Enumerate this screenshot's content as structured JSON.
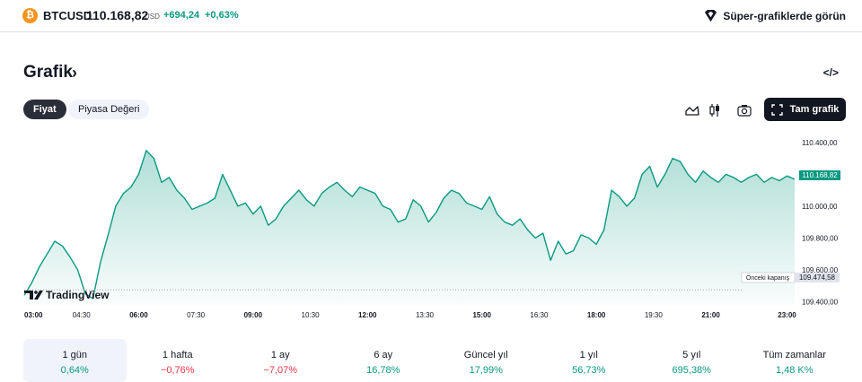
{
  "header": {
    "coin_icon_glyph": "₿",
    "symbol": "BTCUSD",
    "price": "110.168,82",
    "unit": "USD",
    "change": "+694,24",
    "change_pct": "+0,63%",
    "super_charts_label": "Süper-grafiklerde görün"
  },
  "section": {
    "title": "Grafik",
    "chevron": "›",
    "embed_label": "</>"
  },
  "tabs": [
    {
      "label": "Fiyat",
      "active": true
    },
    {
      "label": "Piyasa Değeri",
      "active": false
    }
  ],
  "toolbar": {
    "full_chart_label": "Tam grafik"
  },
  "colors": {
    "up": "#089981",
    "down": "#f23645",
    "dark": "#131722",
    "pill_bg": "#f0f3fa",
    "btc": "#f7931a"
  },
  "chart_data": {
    "type": "area",
    "title": "",
    "xlabel": "",
    "ylabel": "",
    "x_ticks": [
      "03:00",
      "04:30",
      "06:00",
      "07:30",
      "09:00",
      "10:30",
      "12:00",
      "13:30",
      "15:00",
      "16:30",
      "18:00",
      "19:30",
      "21:00",
      "23:00"
    ],
    "x_ticks_bold": [
      "03:00",
      "06:00",
      "09:00",
      "12:00",
      "15:00",
      "18:00",
      "21:00",
      "23:00"
    ],
    "y_ticks": [
      110400,
      110200,
      110000,
      109800,
      109600,
      109400
    ],
    "y_tick_labels": [
      "110.400,00",
      "110.200,00",
      "110.000,00",
      "109.800,00",
      "109.600,00",
      "109.400,00"
    ],
    "ylim": [
      109380,
      110450
    ],
    "grid": false,
    "x_hours": [
      3.0,
      3.2,
      3.4,
      3.6,
      3.8,
      4.0,
      4.2,
      4.4,
      4.6,
      4.8,
      5.0,
      5.2,
      5.4,
      5.6,
      5.8,
      6.0,
      6.2,
      6.4,
      6.6,
      6.8,
      7.0,
      7.2,
      7.4,
      7.6,
      7.8,
      8.0,
      8.2,
      8.4,
      8.6,
      8.8,
      9.0,
      9.2,
      9.4,
      9.6,
      9.8,
      10.0,
      10.2,
      10.4,
      10.6,
      10.8,
      11.0,
      11.2,
      11.4,
      11.6,
      11.8,
      12.0,
      12.2,
      12.4,
      12.6,
      12.8,
      13.0,
      13.2,
      13.4,
      13.6,
      13.8,
      14.0,
      14.2,
      14.4,
      14.6,
      14.8,
      15.0,
      15.2,
      15.4,
      15.6,
      15.8,
      16.0,
      16.2,
      16.4,
      16.6,
      16.8,
      17.0,
      17.2,
      17.4,
      17.6,
      17.8,
      18.0,
      18.2,
      18.4,
      18.6,
      18.8,
      19.0,
      19.2,
      19.4,
      19.6,
      19.8,
      20.0,
      20.2,
      20.4,
      20.6,
      20.8,
      21.0,
      21.2,
      21.4,
      21.6,
      21.8,
      22.0,
      22.2,
      22.4,
      22.6,
      22.8,
      23.0,
      23.2
    ],
    "values": [
      109440,
      109520,
      109620,
      109700,
      109780,
      109750,
      109680,
      109600,
      109450,
      109420,
      109650,
      109820,
      110000,
      110080,
      110120,
      110200,
      110350,
      110300,
      110150,
      110180,
      110100,
      110050,
      109980,
      110000,
      110020,
      110050,
      110200,
      110100,
      110000,
      110020,
      109950,
      110000,
      109880,
      109920,
      110000,
      110050,
      110100,
      110040,
      110000,
      110080,
      110120,
      110150,
      110100,
      110060,
      110120,
      110100,
      110080,
      110000,
      109980,
      109900,
      109920,
      110040,
      110000,
      109900,
      109960,
      110050,
      110100,
      110080,
      110020,
      110000,
      109980,
      110060,
      109950,
      109900,
      109880,
      109920,
      109850,
      109800,
      109830,
      109660,
      109780,
      109700,
      109720,
      109820,
      109800,
      109760,
      109850,
      110100,
      110060,
      110000,
      110050,
      110200,
      110250,
      110120,
      110200,
      110300,
      110280,
      110200,
      110150,
      110220,
      110180,
      110150,
      110200,
      110180,
      110150,
      110180,
      110200,
      110150,
      110180,
      110160,
      110190,
      110168.82
    ],
    "current_price_label": "110.168,82",
    "previous_close": 109474.58,
    "previous_close_label": "109.474,58",
    "previous_close_text": "Önceki kapanış",
    "watermark": "TradingView"
  },
  "periods": [
    {
      "label": "1 gün",
      "value": "0,64%",
      "trend": "pos",
      "active": true
    },
    {
      "label": "1 hafta",
      "value": "−0,76%",
      "trend": "neg",
      "active": false
    },
    {
      "label": "1 ay",
      "value": "−7,07%",
      "trend": "neg",
      "active": false
    },
    {
      "label": "6 ay",
      "value": "16,78%",
      "trend": "pos",
      "active": false
    },
    {
      "label": "Güncel yıl",
      "value": "17,99%",
      "trend": "pos",
      "active": false
    },
    {
      "label": "1 yıl",
      "value": "56,73%",
      "trend": "pos",
      "active": false
    },
    {
      "label": "5 yıl",
      "value": "695,38%",
      "trend": "pos",
      "active": false
    },
    {
      "label": "Tüm zamanlar",
      "value": "1,48 K%",
      "trend": "pos",
      "active": false
    }
  ]
}
